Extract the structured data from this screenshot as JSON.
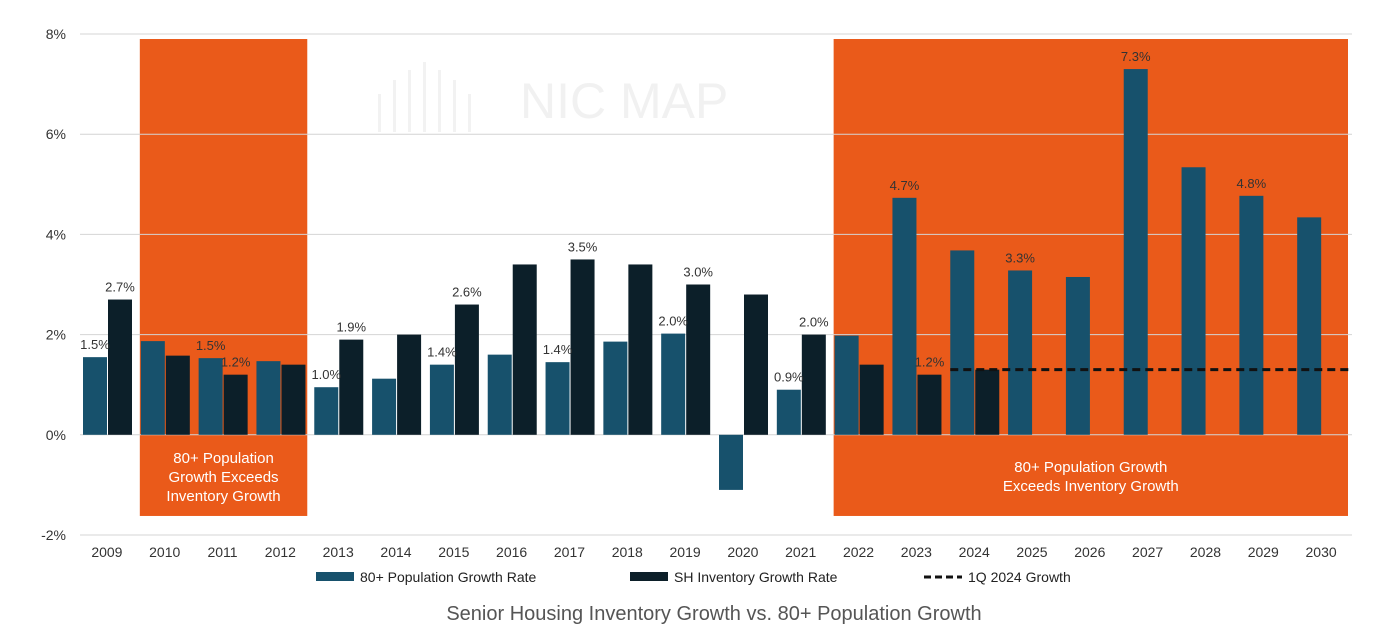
{
  "chart_data": {
    "type": "bar",
    "title": "Senior Housing Inventory Growth vs. 80+ Population Growth",
    "watermark": "NIC MAP",
    "categories": [
      "2009",
      "2010",
      "2011",
      "2012",
      "2013",
      "2014",
      "2015",
      "2016",
      "2017",
      "2018",
      "2019",
      "2020",
      "2021",
      "2022",
      "2023",
      "2024",
      "2025",
      "2026",
      "2027",
      "2028",
      "2029",
      "2030"
    ],
    "ylim": [
      -2,
      8
    ],
    "y_ticks": [
      "8%",
      "6%",
      "4%",
      "2%",
      "0%",
      "-2%"
    ],
    "y_tick_values": [
      8,
      6,
      4,
      2,
      0,
      -2
    ],
    "grid": true,
    "legend_position": "bottom",
    "series": [
      {
        "name": "80+ Population Growth Rate",
        "color": "#17516c",
        "values": [
          1.55,
          1.87,
          1.53,
          1.47,
          0.95,
          1.12,
          1.4,
          1.6,
          1.45,
          1.86,
          2.02,
          -1.1,
          0.9,
          1.98,
          4.73,
          3.68,
          3.28,
          3.15,
          7.3,
          5.34,
          4.77,
          4.34
        ],
        "labels": [
          "1.5%",
          "",
          "1.5%",
          "",
          "1.0%",
          "",
          "1.4%",
          "",
          "1.4%",
          "",
          "2.0%",
          "",
          "0.9%",
          "",
          "4.7%",
          "",
          "3.3%",
          "",
          "7.3%",
          "",
          "4.8%",
          ""
        ]
      },
      {
        "name": "SH Inventory Growth Rate",
        "color": "#0c1f29",
        "values": [
          2.7,
          1.58,
          1.2,
          1.4,
          1.9,
          2.0,
          2.6,
          3.4,
          3.5,
          3.4,
          3.0,
          2.8,
          2.0,
          1.4,
          1.2,
          1.3,
          null,
          null,
          null,
          null,
          null,
          null
        ],
        "labels": [
          "2.7%",
          "",
          "1.2%",
          "",
          "1.9%",
          "",
          "2.6%",
          "",
          "3.5%",
          "",
          "3.0%",
          "",
          "2.0%",
          "",
          "1.2%",
          "",
          "",
          "",
          "",
          "",
          "",
          ""
        ]
      }
    ],
    "reference_line": {
      "name": "1Q 2024 Growth",
      "value": 1.3,
      "from_category": "2024",
      "to_category": "2030",
      "style": "dashed",
      "color": "#111111"
    },
    "highlight_regions": [
      {
        "from_category": "2010",
        "to_category": "2012",
        "color": "#ea5a1a",
        "label_lines": [
          "80+ Population",
          "Growth Exceeds",
          "Inventory Growth"
        ]
      },
      {
        "from_category": "2022",
        "to_category": "2030",
        "color": "#ea5a1a",
        "label_lines": [
          "80+ Population Growth",
          "Exceeds Inventory Growth"
        ]
      }
    ]
  }
}
